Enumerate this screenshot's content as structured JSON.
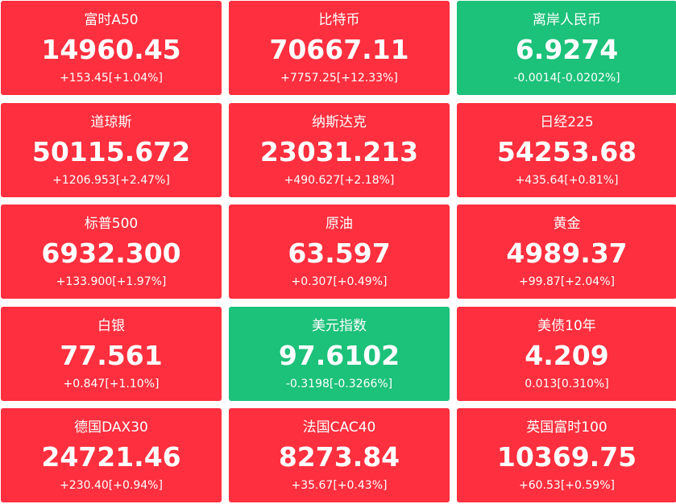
{
  "tiles": [
    {
      "name": "富时A50",
      "price": "14960.45",
      "change": "+153.45[+1.04%]",
      "color": "#fe2f3e"
    },
    {
      "name": "比特币",
      "price": "70667.11",
      "change": "+7757.25[+12.33%]",
      "color": "#fe2f3e"
    },
    {
      "name": "离岸人民币",
      "price": "6.9274",
      "change": "-0.0014[-0.0202%]",
      "color": "#1cc17a"
    },
    {
      "name": "道琼斯",
      "price": "50115.672",
      "change": "+1206.953[+2.47%]",
      "color": "#fe2f3e"
    },
    {
      "name": "纳斯达克",
      "price": "23031.213",
      "change": "+490.627[+2.18%]",
      "color": "#fe2f3e"
    },
    {
      "name": "日经225",
      "price": "54253.68",
      "change": "+435.64[+0.81%]",
      "color": "#fe2f3e"
    },
    {
      "name": "标普500",
      "price": "6932.300",
      "change": "+133.900[+1.97%]",
      "color": "#fe2f3e"
    },
    {
      "name": "原油",
      "price": "63.597",
      "change": "+0.307[+0.49%]",
      "color": "#fe2f3e"
    },
    {
      "name": "黄金",
      "price": "4989.37",
      "change": "+99.87[+2.04%]",
      "color": "#fe2f3e"
    },
    {
      "name": "白银",
      "price": "77.561",
      "change": "+0.847[+1.10%]",
      "color": "#fe2f3e"
    },
    {
      "name": "美元指数",
      "price": "97.6102",
      "change": "-0.3198[-0.3266%]",
      "color": "#1cc17a"
    },
    {
      "name": "美债10年",
      "price": "4.209",
      "change": "0.013[0.310%]",
      "color": "#fe2f3e"
    },
    {
      "name": "德国DAX30",
      "price": "24721.46",
      "change": "+230.40[+0.94%]",
      "color": "#fe2f3e"
    },
    {
      "name": "法国CAC40",
      "price": "8273.84",
      "change": "+35.67[+0.43%]",
      "color": "#fe2f3e"
    },
    {
      "name": "英国富时100",
      "price": "10369.75",
      "change": "+60.53[+0.59%]",
      "color": "#fe2f3e"
    }
  ]
}
